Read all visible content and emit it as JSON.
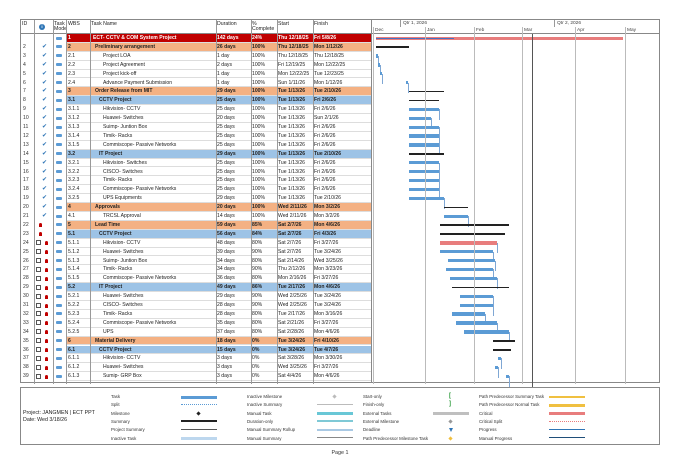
{
  "headers": {
    "id": "ID",
    "task_mode": "Task Mode",
    "wbs": "WBS",
    "task_name": "Task Name",
    "duration": "Duration",
    "pct": "% Complete",
    "start": "Start",
    "finish": "Finish"
  },
  "timeline": {
    "q1": "Qtr 1, 2026",
    "q2": "Qtr 2, 2026",
    "months": [
      "Dec",
      "Jan",
      "Feb",
      "Mar",
      "Apr",
      "May"
    ]
  },
  "rows": [
    {
      "id": "1",
      "wbs": "1",
      "name": "ECT- CCTV & COM System Project",
      "dur": "142 days",
      "pct": "24%",
      "start": "Thu 12/18/25",
      "fin": "Fri 5/8/26",
      "type": "project",
      "ind": "",
      "g": [
        0.2,
        84
      ]
    },
    {
      "id": "2",
      "wbs": "2",
      "name": "Preliminary arrangement",
      "dur": "26 days",
      "pct": "100%",
      "start": "Thu 12/18/25",
      "fin": "Mon 1/12/26",
      "type": "s1",
      "ind": "chk",
      "g": [
        0.2,
        16
      ]
    },
    {
      "id": "3",
      "wbs": "2.1",
      "name": "Project LOA",
      "dur": "1 day",
      "pct": "100%",
      "start": "Thu 12/18/25",
      "fin": "Thu 12/18/25",
      "type": "task",
      "ind": "chk",
      "g": [
        0.2,
        0.8
      ]
    },
    {
      "id": "4",
      "wbs": "2.2",
      "name": "Project Agreement",
      "dur": "2 days",
      "pct": "100%",
      "start": "Fri 12/19/25",
      "fin": "Mon 12/22/25",
      "type": "task",
      "ind": "chk",
      "g": [
        0.8,
        2
      ]
    },
    {
      "id": "5",
      "wbs": "2.3",
      "name": "Project kick-off",
      "dur": "1 day",
      "pct": "100%",
      "start": "Mon 12/22/25",
      "fin": "Tue 12/23/25",
      "type": "task",
      "ind": "chk",
      "g": [
        2,
        3
      ]
    },
    {
      "id": "6",
      "wbs": "2.4",
      "name": "Advance Payment Submission",
      "dur": "1 day",
      "pct": "100%",
      "start": "Sun 1/11/26",
      "fin": "Mon 1/12/26",
      "type": "task",
      "ind": "chk",
      "g": [
        14.5,
        15.5
      ]
    },
    {
      "id": "7",
      "wbs": "3",
      "name": "Order Release from MIT",
      "dur": "29 days",
      "pct": "100%",
      "start": "Tue 1/13/26",
      "fin": "Tue 2/10/26",
      "type": "s1",
      "ind": "chk",
      "g": [
        16,
        33
      ]
    },
    {
      "id": "8",
      "wbs": "3.1",
      "name": "CCTV Project",
      "dur": "25 days",
      "pct": "100%",
      "start": "Tue 1/13/26",
      "fin": "Fri 2/6/26",
      "type": "s2",
      "ind": "chk",
      "g": [
        16,
        30.5
      ]
    },
    {
      "id": "9",
      "wbs": "3.1.1",
      "name": "Hikvision- CCTV",
      "dur": "25 days",
      "pct": "100%",
      "start": "Tue 1/13/26",
      "fin": "Fri 2/6/26",
      "type": "task",
      "ind": "chk",
      "g": [
        16,
        30.5
      ]
    },
    {
      "id": "10",
      "wbs": "3.1.2",
      "name": "Huawei- Switches",
      "dur": "20 days",
      "pct": "100%",
      "start": "Tue 1/13/26",
      "fin": "Sun 2/1/26",
      "type": "task",
      "ind": "chk",
      "g": [
        16,
        27
      ]
    },
    {
      "id": "11",
      "wbs": "3.1.3",
      "name": "Suimp- Juntion Box",
      "dur": "25 days",
      "pct": "100%",
      "start": "Tue 1/13/26",
      "fin": "Fri 2/6/26",
      "type": "task",
      "ind": "chk",
      "g": [
        16,
        30.5
      ]
    },
    {
      "id": "12",
      "wbs": "3.1.4",
      "name": "Timik- Racks",
      "dur": "25 days",
      "pct": "100%",
      "start": "Tue 1/13/26",
      "fin": "Fri 2/6/26",
      "type": "task",
      "ind": "chk",
      "g": [
        16,
        30.5
      ]
    },
    {
      "id": "13",
      "wbs": "3.1.5",
      "name": "Commiscope- Passive Networks",
      "dur": "25 days",
      "pct": "100%",
      "start": "Tue 1/13/26",
      "fin": "Fri 2/6/26",
      "type": "task",
      "ind": "chk",
      "g": [
        16,
        30.5
      ]
    },
    {
      "id": "14",
      "wbs": "3.2",
      "name": "IT Project",
      "dur": "29 days",
      "pct": "100%",
      "start": "Tue 1/13/26",
      "fin": "Tue 2/10/26",
      "type": "s2",
      "ind": "chk",
      "g": [
        16,
        33
      ]
    },
    {
      "id": "15",
      "wbs": "3.2.1",
      "name": "Hikvision- Switches",
      "dur": "25 days",
      "pct": "100%",
      "start": "Tue 1/13/26",
      "fin": "Fri 2/6/26",
      "type": "task",
      "ind": "chk",
      "g": [
        16,
        30.5
      ]
    },
    {
      "id": "16",
      "wbs": "3.2.2",
      "name": "CISCO- Switches",
      "dur": "25 days",
      "pct": "100%",
      "start": "Tue 1/13/26",
      "fin": "Fri 2/6/26",
      "type": "task",
      "ind": "chk",
      "g": [
        16,
        30.5
      ]
    },
    {
      "id": "17",
      "wbs": "3.2.3",
      "name": "Timik- Racks",
      "dur": "25 days",
      "pct": "100%",
      "start": "Tue 1/13/26",
      "fin": "Fri 2/6/26",
      "type": "task",
      "ind": "chk",
      "g": [
        16,
        30.5
      ]
    },
    {
      "id": "18",
      "wbs": "3.2.4",
      "name": "Commiscope- Passive Networks",
      "dur": "25 days",
      "pct": "100%",
      "start": "Tue 1/13/26",
      "fin": "Fri 2/6/26",
      "type": "task",
      "ind": "chk",
      "g": [
        16,
        30.5
      ]
    },
    {
      "id": "19",
      "wbs": "3.2.5",
      "name": "UPS Equipments",
      "dur": "29 days",
      "pct": "100%",
      "start": "Tue 1/13/26",
      "fin": "Tue 2/10/26",
      "type": "task",
      "ind": "chk",
      "g": [
        16,
        33
      ]
    },
    {
      "id": "20",
      "wbs": "4",
      "name": "Approvals",
      "dur": "20 days",
      "pct": "100%",
      "start": "Wed 2/11/26",
      "fin": "Mon 3/2/26",
      "type": "s1",
      "ind": "chk",
      "g": [
        33,
        45
      ]
    },
    {
      "id": "21",
      "wbs": "4.1",
      "name": "TRCSL Approval",
      "dur": "14 days",
      "pct": "100%",
      "start": "Wed 2/11/26",
      "fin": "Mon 3/2/26",
      "type": "task",
      "ind": "chk",
      "g": [
        33,
        45
      ]
    },
    {
      "id": "22",
      "wbs": "5",
      "name": "Lead Time",
      "dur": "59 days",
      "pct": "85%",
      "start": "Sat 2/7/26",
      "fin": "Mon 4/6/26",
      "type": "s1",
      "ind": "man",
      "g": [
        31,
        65
      ]
    },
    {
      "id": "23",
      "wbs": "5.1",
      "name": "CCTV Project",
      "dur": "56 days",
      "pct": "84%",
      "start": "Sat 2/7/26",
      "fin": "Fri 4/3/26",
      "type": "s2",
      "ind": "man",
      "g": [
        31,
        63
      ]
    },
    {
      "id": "24",
      "wbs": "5.1.1",
      "name": "Hikvision- CCTV",
      "dur": "48 days",
      "pct": "80%",
      "start": "Sat 2/7/26",
      "fin": "Fri 3/27/26",
      "type": "crit",
      "ind": "man",
      "g": [
        31,
        59
      ]
    },
    {
      "id": "25",
      "wbs": "5.1.2",
      "name": "Huawei- Switches",
      "dur": "39 days",
      "pct": "90%",
      "start": "Sat 2/7/26",
      "fin": "Tue 3/24/26",
      "type": "task",
      "ind": "man",
      "g": [
        31,
        57
      ]
    },
    {
      "id": "26",
      "wbs": "5.1.3",
      "name": "Suimp- Juntion Box",
      "dur": "34 days",
      "pct": "80%",
      "start": "Sat 2/14/26",
      "fin": "Wed 3/25/26",
      "type": "task",
      "ind": "man",
      "g": [
        35,
        58
      ]
    },
    {
      "id": "27",
      "wbs": "5.1.4",
      "name": "Timik- Racks",
      "dur": "34 days",
      "pct": "90%",
      "start": "Thu 2/12/26",
      "fin": "Mon 3/23/26",
      "type": "task",
      "ind": "man",
      "g": [
        34,
        57
      ]
    },
    {
      "id": "28",
      "wbs": "5.1.5",
      "name": "Commiscope- Passive Networks",
      "dur": "36 days",
      "pct": "80%",
      "start": "Mon 2/16/26",
      "fin": "Fri 3/27/26",
      "type": "task",
      "ind": "man",
      "g": [
        36,
        59
      ]
    },
    {
      "id": "29",
      "wbs": "5.2",
      "name": "IT Project",
      "dur": "49 days",
      "pct": "86%",
      "start": "Tue 2/17/26",
      "fin": "Mon 4/6/26",
      "type": "s2",
      "ind": "man",
      "g": [
        37,
        65
      ]
    },
    {
      "id": "30",
      "wbs": "5.2.1",
      "name": "Huawei- Switches",
      "dur": "29 days",
      "pct": "90%",
      "start": "Wed 2/25/26",
      "fin": "Tue 3/24/26",
      "type": "task",
      "ind": "man",
      "g": [
        41,
        57
      ]
    },
    {
      "id": "31",
      "wbs": "5.2.2",
      "name": "CISCO- Switches",
      "dur": "28 days",
      "pct": "90%",
      "start": "Wed 2/25/26",
      "fin": "Tue 3/24/26",
      "type": "task",
      "ind": "man",
      "g": [
        41,
        57
      ]
    },
    {
      "id": "32",
      "wbs": "5.2.3",
      "name": "Timik- Racks",
      "dur": "28 days",
      "pct": "80%",
      "start": "Tue 2/17/26",
      "fin": "Mon 3/16/26",
      "type": "task",
      "ind": "man",
      "g": [
        37,
        53
      ]
    },
    {
      "id": "33",
      "wbs": "5.2.4",
      "name": "Commiscope- Passive Networks",
      "dur": "35 days",
      "pct": "80%",
      "start": "Sat 2/21/26",
      "fin": "Fri 3/27/26",
      "type": "task",
      "ind": "man",
      "g": [
        39,
        59
      ]
    },
    {
      "id": "34",
      "wbs": "5.2.5",
      "name": "UPS",
      "dur": "37 days",
      "pct": "80%",
      "start": "Sat 2/28/26",
      "fin": "Mon 4/6/26",
      "type": "task",
      "ind": "man",
      "g": [
        43,
        65
      ]
    },
    {
      "id": "35",
      "wbs": "6",
      "name": "Material Delivery",
      "dur": "18 days",
      "pct": "0%",
      "start": "Tue 3/24/26",
      "fin": "Fri 4/10/26",
      "type": "s1",
      "ind": "man",
      "g": [
        57,
        68
      ]
    },
    {
      "id": "36",
      "wbs": "6.1",
      "name": "CCTV Project",
      "dur": "15 days",
      "pct": "0%",
      "start": "Tue 3/24/26",
      "fin": "Tue 4/7/26",
      "type": "s2",
      "ind": "man",
      "g": [
        57,
        66
      ]
    },
    {
      "id": "37",
      "wbs": "6.1.1",
      "name": "Hikvision- CCTV",
      "dur": "3 days",
      "pct": "0%",
      "start": "Sat 3/28/26",
      "fin": "Mon 3/30/26",
      "type": "task",
      "ind": "man2",
      "g": [
        59.5,
        61
      ]
    },
    {
      "id": "38",
      "wbs": "6.1.2",
      "name": "Huawei- Switches",
      "dur": "3 days",
      "pct": "0%",
      "start": "Wed 3/25/26",
      "fin": "Fri 3/27/26",
      "type": "task",
      "ind": "man2",
      "g": [
        58,
        59.5
      ]
    },
    {
      "id": "39",
      "wbs": "6.1.3",
      "name": "Sumip- GRP Box",
      "dur": "3 days",
      "pct": "0%",
      "start": "Sat 4/4/26",
      "fin": "Mon 4/6/26",
      "type": "task",
      "ind": "man2",
      "g": [
        63.5,
        65
      ]
    }
  ],
  "legend": {
    "project": "Project: JANGMEN | ECT PPT",
    "date": "Date: Wed 3/18/26",
    "col1": [
      "Task",
      "Split",
      "Milestone",
      "Summary",
      "Project Summary",
      "Inactive Task"
    ],
    "col2": [
      "Inactive Milestone",
      "Inactive Summary",
      "Manual Task",
      "Duration-only",
      "Manual Summary Rollup",
      "Manual Summary"
    ],
    "col3": [
      "Start-only",
      "Finish-only",
      "External Tasks",
      "External Milestone",
      "Deadline",
      "Path Predecessor Milestone Task"
    ],
    "col4": [
      "Path Predecessor Summary Task",
      "Path Predecessor Normal Task",
      "Critical",
      "Critical Split",
      "Progress",
      "Manual Progress"
    ],
    "start_glyph": "[",
    "finish_glyph": "]"
  },
  "footer": "Page 1"
}
